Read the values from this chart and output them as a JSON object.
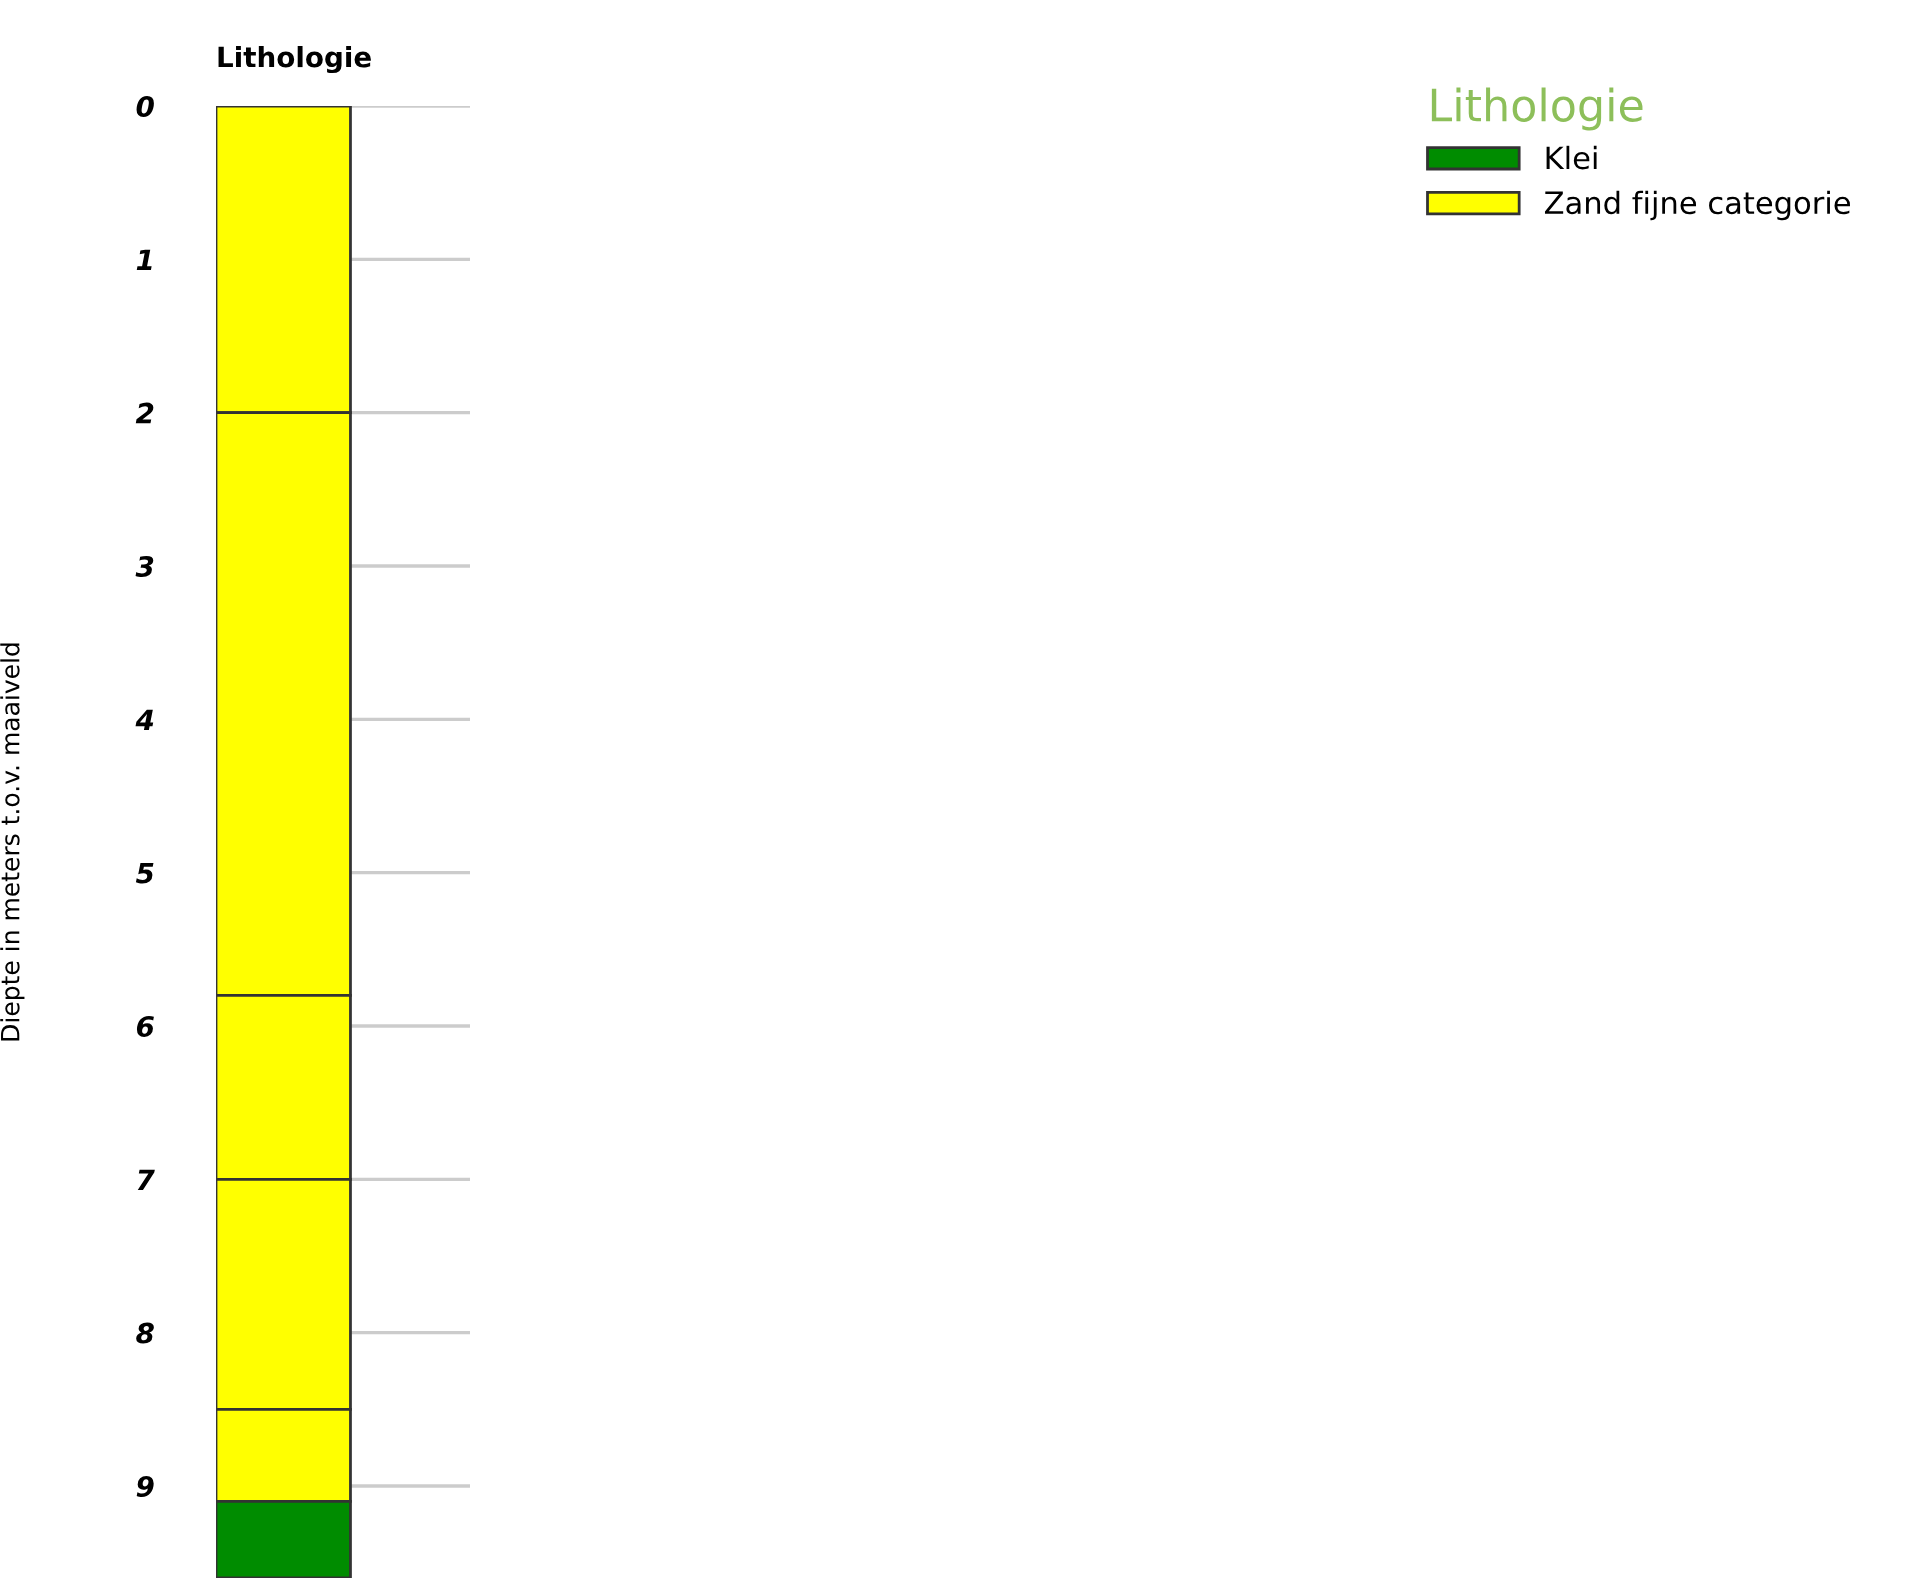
{
  "chart_data": {
    "type": "bar",
    "stacked": true,
    "title": "Lithologie",
    "ylabel": "Diepte in meters t.o.v. maaiveld",
    "legend_title": "Lithologie",
    "categories": [
      null
    ],
    "series": [
      {
        "color": "#ffff00",
        "values": [
          2.0
        ]
      },
      {
        "color": "#ffff00",
        "values": [
          3.8
        ]
      },
      {
        "color": "#ffff00",
        "values": [
          1.2
        ]
      },
      {
        "color": "#ffff00",
        "values": [
          1.5
        ]
      },
      {
        "name": "Zand fijne categorie",
        "color": "#ffff00",
        "values": [
          0.6
        ]
      },
      {
        "name": "Klei",
        "color": "#008c00",
        "values": [
          0.5
        ]
      }
    ],
    "ylim": [
      9.6,
      0
    ],
    "yticks": [
      0,
      1,
      2,
      3,
      4,
      5,
      6,
      7,
      8,
      9
    ],
    "grid": "y",
    "legend": "right"
  }
}
